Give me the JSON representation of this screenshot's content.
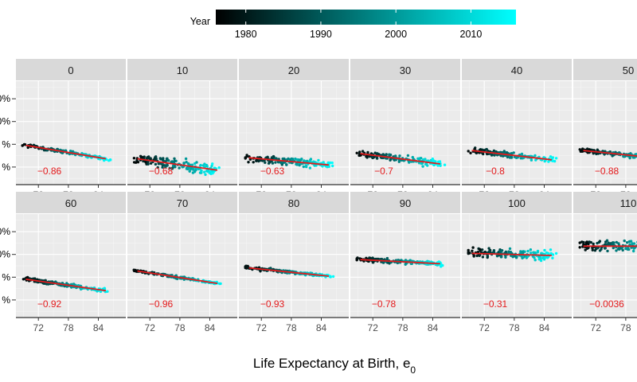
{
  "chart_data": {
    "type": "scatter",
    "facet_variable": "Age",
    "xlabel": "Life Expectancy at Birth, e",
    "xlabel_subscript": "0",
    "ylabel": "",
    "xlim": [
      67.5,
      89.5
    ],
    "x_ticks": [
      72,
      78,
      84
    ],
    "x_tick_labels": [
      "72",
      "78",
      "84"
    ],
    "y_tick_labels_visible": [
      "0%",
      "0%",
      "%",
      "%"
    ],
    "legend": {
      "title": "Year",
      "type": "colorbar",
      "position": "top",
      "range": [
        1976,
        2016
      ],
      "ticks": [
        1980,
        1990,
        2000,
        2010
      ],
      "tick_labels": [
        "1980",
        "1990",
        "2000",
        "2010"
      ],
      "color_low": "#000000",
      "color_high": "#00ffff"
    },
    "fit_line_color": "#e41a1c",
    "panels": [
      {
        "label": "0",
        "correlation": "−0.86",
        "fit": [
          [
            69.5,
            0.62
          ],
          [
            85.5,
            0.75
          ]
        ],
        "spread": 0.015
      },
      {
        "label": "10",
        "correlation": "−0.68",
        "fit": [
          [
            69.5,
            0.75
          ],
          [
            85.5,
            0.86
          ]
        ],
        "spread": 0.05
      },
      {
        "label": "20",
        "correlation": "−0.63",
        "fit": [
          [
            69.5,
            0.74
          ],
          [
            85.5,
            0.81
          ]
        ],
        "spread": 0.035
      },
      {
        "label": "30",
        "correlation": "−0.7",
        "fit": [
          [
            69.5,
            0.7
          ],
          [
            85.5,
            0.8
          ]
        ],
        "spread": 0.03
      },
      {
        "label": "40",
        "correlation": "−0.8",
        "fit": [
          [
            69.5,
            0.67
          ],
          [
            85.5,
            0.76
          ]
        ],
        "spread": 0.025
      },
      {
        "label": "50",
        "correlation": "−0.88",
        "fit": [
          [
            69.5,
            0.67
          ],
          [
            85.5,
            0.75
          ]
        ],
        "spread": 0.02
      },
      {
        "label": "60",
        "correlation": "−0.92",
        "fit": [
          [
            69.5,
            0.63
          ],
          [
            85.5,
            0.74
          ]
        ],
        "spread": 0.018
      },
      {
        "label": "70",
        "correlation": "−0.96",
        "fit": [
          [
            69.5,
            0.55
          ],
          [
            85.5,
            0.67
          ]
        ],
        "spread": 0.012
      },
      {
        "label": "80",
        "correlation": "−0.93",
        "fit": [
          [
            69.5,
            0.52
          ],
          [
            85.5,
            0.6
          ]
        ],
        "spread": 0.014
      },
      {
        "label": "90",
        "correlation": "−0.78",
        "fit": [
          [
            69.5,
            0.44
          ],
          [
            85.5,
            0.48
          ]
        ],
        "spread": 0.02
      },
      {
        "label": "100",
        "correlation": "−0.31",
        "fit": [
          [
            69.5,
            0.38
          ],
          [
            85.5,
            0.4
          ]
        ],
        "spread": 0.045
      },
      {
        "label": "110",
        "correlation": "−0.0036",
        "fit": [
          [
            69.5,
            0.31
          ],
          [
            85.5,
            0.31
          ]
        ],
        "spread": 0.05
      }
    ]
  }
}
